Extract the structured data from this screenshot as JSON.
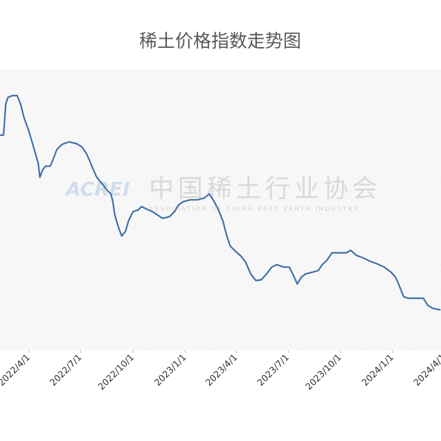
{
  "chart_data": {
    "type": "line",
    "title": "稀土价格指数走势图",
    "watermark": {
      "logo": "ACREI",
      "name": "中国稀土行业协会",
      "subtitle": "ASSOCIATION OF CHINA RARE EARTH INDUSTRY"
    },
    "x": [
      "2022/2/9",
      "2022/2/15",
      "2022/2/19",
      "2022/2/23",
      "2022/3/3",
      "2022/3/11",
      "2022/3/17",
      "2022/3/23",
      "2022/4/1",
      "2022/4/8",
      "2022/4/17",
      "2022/4/20",
      "2022/4/25",
      "2022/4/30",
      "2022/5/8",
      "2022/5/12",
      "2022/5/20",
      "2022/5/29",
      "2022/6/10",
      "2022/6/23",
      "2022/7/3",
      "2022/7/11",
      "2022/7/17",
      "2022/7/23",
      "2022/7/29",
      "2022/8/4",
      "2022/8/10",
      "2022/8/17",
      "2022/8/23",
      "2022/8/26",
      "2022/8/30",
      "2022/9/4",
      "2022/9/11",
      "2022/9/18",
      "2022/9/23",
      "2022/10/1",
      "2022/10/10",
      "2022/10/16",
      "2022/10/25",
      "2022/11/4",
      "2022/11/13",
      "2022/11/22",
      "2022/12/4",
      "2022/12/13",
      "2022/12/20",
      "2022/12/29",
      "2023/1/10",
      "2023/1/22",
      "2023/2/3",
      "2023/2/12",
      "2023/2/19",
      "2023/2/27",
      "2023/3/8",
      "2023/3/15",
      "2023/3/21",
      "2023/3/30",
      "2023/4/9",
      "2023/4/17",
      "2023/4/26",
      "2023/5/5",
      "2023/5/15",
      "2023/5/24",
      "2023/6/2",
      "2023/6/11",
      "2023/6/23",
      "2023/7/3",
      "2023/7/11",
      "2023/7/17",
      "2023/7/24",
      "2023/8/1",
      "2023/8/13",
      "2023/8/23",
      "2023/8/30",
      "2023/9/7",
      "2023/9/16",
      "2023/9/28",
      "2023/10/11",
      "2023/10/19",
      "2023/10/29",
      "2023/11/10",
      "2023/11/22",
      "2023/12/4",
      "2023/12/17",
      "2023/12/29",
      "2024/1/6",
      "2024/1/13",
      "2024/1/20",
      "2024/1/28",
      "2024/2/9",
      "2024/2/24",
      "2024/3/2",
      "2024/3/11",
      "2024/3/25"
    ],
    "series": [
      {
        "name": "稀土价格指数",
        "color": "#3e6ea8",
        "values": [
          383,
          383,
          420,
          428,
          430,
          430,
          420,
          404,
          387,
          371,
          350,
          333,
          342,
          346,
          346,
          352,
          366,
          372,
          375,
          373,
          369,
          361,
          352,
          342,
          333,
          328,
          323,
          317,
          313,
          305,
          288,
          276,
          263,
          269,
          281,
          292,
          294,
          298,
          295,
          292,
          288,
          284,
          286,
          292,
          300,
          304,
          306,
          306,
          308,
          313,
          306,
          296,
          281,
          263,
          251,
          245,
          239,
          232,
          218,
          210,
          211,
          218,
          226,
          229,
          226,
          226,
          215,
          206,
          214,
          218,
          220,
          222,
          229,
          234,
          243,
          243,
          243,
          246,
          240,
          237,
          233,
          230,
          226,
          220,
          214,
          203,
          191,
          189,
          189,
          189,
          181,
          177,
          175
        ]
      }
    ],
    "ylim": [
      100,
      500
    ],
    "xticks": [
      "2022/4/1",
      "2022/7/1",
      "2022/10/1",
      "2023/1/1",
      "2023/4/1",
      "2023/7/1",
      "2023/10/1",
      "2024/1/1",
      "2024/4/1"
    ]
  }
}
